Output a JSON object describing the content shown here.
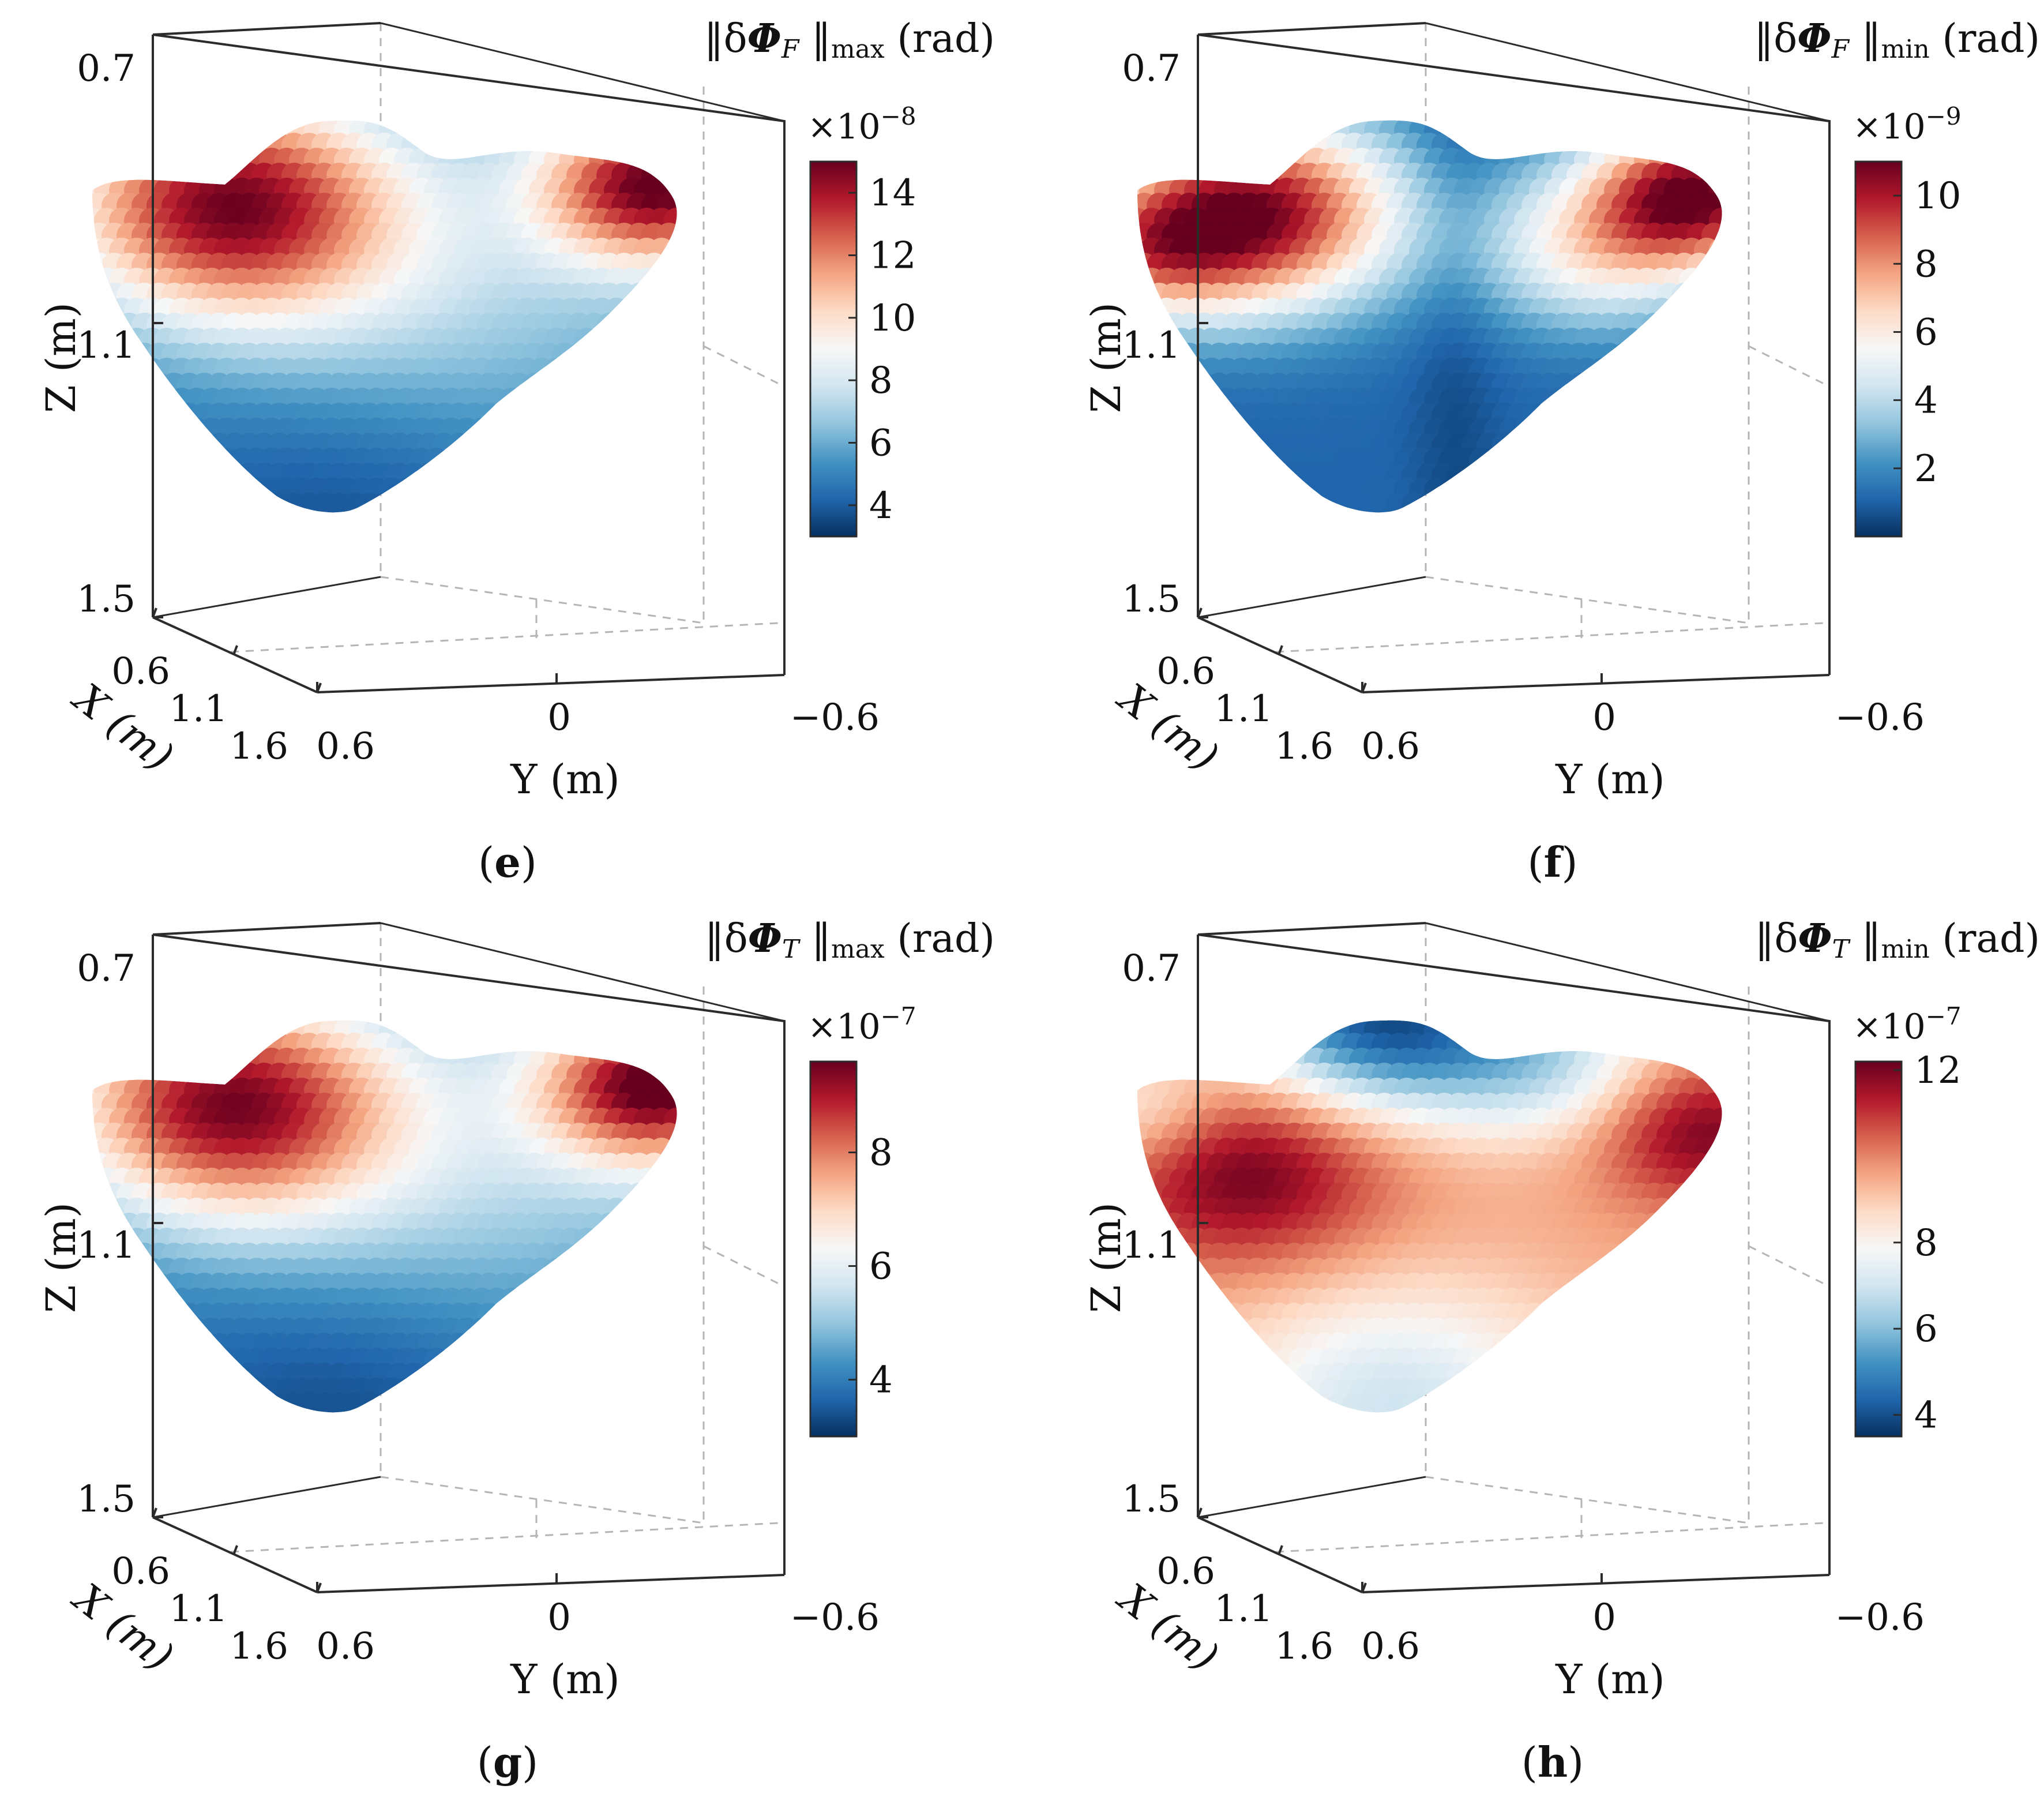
{
  "colormap": [
    "#053061",
    "#2166ac",
    "#4393c3",
    "#92c5de",
    "#d1e5f0",
    "#f7f7f7",
    "#fddbc7",
    "#f4a582",
    "#d6604d",
    "#b2182b",
    "#67001f"
  ],
  "chart_data": [
    {
      "type": "scatter3d",
      "panel": "(e)",
      "panel_letter": "e",
      "title": "‖δΦF ‖max (rad)",
      "title_parts": {
        "pre": "‖δ",
        "phi": "Φ",
        "sub": "F",
        "norm": " ‖",
        "kind": "max",
        "unit": " (rad)"
      },
      "zlabel": "Z (m)",
      "xlabel": "X (m)",
      "ylabel": "Y (m)",
      "zticks": [
        "0.7",
        "1.1",
        "1.5"
      ],
      "xticks": [
        "0.6",
        "1.1",
        "1.6"
      ],
      "yticks": [
        "0.6",
        "0",
        "−0.6"
      ],
      "colorbar": {
        "exponent": "×10",
        "exp_power": "−8",
        "range": [
          3,
          15
        ],
        "ticks": [
          4,
          6,
          8,
          10,
          12,
          14
        ]
      },
      "pattern": "max-F",
      "hotspots": [
        {
          "location": "upper-left",
          "level": "max"
        },
        {
          "location": "upper-right",
          "level": "max"
        },
        {
          "location": "bottom",
          "level": "min"
        }
      ]
    },
    {
      "type": "scatter3d",
      "panel": "(f)",
      "panel_letter": "f",
      "title": "‖δΦF ‖min (rad)",
      "title_parts": {
        "pre": "‖δ",
        "phi": "Φ",
        "sub": "F",
        "norm": " ‖",
        "kind": "min",
        "unit": " (rad)"
      },
      "zlabel": "Z (m)",
      "xlabel": "X (m)",
      "ylabel": "Y (m)",
      "zticks": [
        "0.7",
        "1.1",
        "1.5"
      ],
      "xticks": [
        "0.6",
        "1.1",
        "1.6"
      ],
      "yticks": [
        "0.6",
        "0",
        "−0.6"
      ],
      "colorbar": {
        "exponent": "×10",
        "exp_power": "−9",
        "range": [
          0,
          11
        ],
        "ticks": [
          2,
          4,
          6,
          8,
          10
        ]
      },
      "pattern": "min-F",
      "hotspots": [
        {
          "location": "upper-left",
          "level": "max"
        },
        {
          "location": "upper-right",
          "level": "max"
        },
        {
          "location": "center-band",
          "level": "min"
        }
      ]
    },
    {
      "type": "scatter3d",
      "panel": "(g)",
      "panel_letter": "g",
      "title": "‖δΦT ‖max (rad)",
      "title_parts": {
        "pre": "‖δ",
        "phi": "Φ",
        "sub": "T",
        "norm": " ‖",
        "kind": "max",
        "unit": " (rad)"
      },
      "zlabel": "Z (m)",
      "xlabel": "X (m)",
      "ylabel": "Y (m)",
      "zticks": [
        "0.7",
        "1.1",
        "1.5"
      ],
      "xticks": [
        "0.6",
        "1.1",
        "1.6"
      ],
      "yticks": [
        "0.6",
        "0",
        "−0.6"
      ],
      "colorbar": {
        "exponent": "×10",
        "exp_power": "−7",
        "range": [
          3,
          9.6
        ],
        "ticks": [
          4,
          6,
          8
        ]
      },
      "pattern": "max-T",
      "hotspots": [
        {
          "location": "upper-left",
          "level": "max"
        },
        {
          "location": "upper-right",
          "level": "max"
        },
        {
          "location": "bottom",
          "level": "min"
        }
      ]
    },
    {
      "type": "scatter3d",
      "panel": "(h)",
      "panel_letter": "h",
      "title": "‖δΦT ‖min (rad)",
      "title_parts": {
        "pre": "‖δ",
        "phi": "Φ",
        "sub": "T",
        "norm": " ‖",
        "kind": "min",
        "unit": " (rad)"
      },
      "zlabel": "Z (m)",
      "xlabel": "X (m)",
      "ylabel": "Y (m)",
      "zticks": [
        "0.7",
        "1.1",
        "1.5"
      ],
      "xticks": [
        "0.6",
        "1.1",
        "1.6"
      ],
      "yticks": [
        "0.6",
        "0",
        "−0.6"
      ],
      "colorbar": {
        "exponent": "×10",
        "exp_power": "−7",
        "range": [
          3.5,
          12.2
        ],
        "ticks": [
          4,
          6,
          8,
          12
        ]
      },
      "pattern": "min-T",
      "hotspots": [
        {
          "location": "left",
          "level": "max"
        },
        {
          "location": "right",
          "level": "max"
        },
        {
          "location": "top",
          "level": "min"
        }
      ]
    }
  ]
}
